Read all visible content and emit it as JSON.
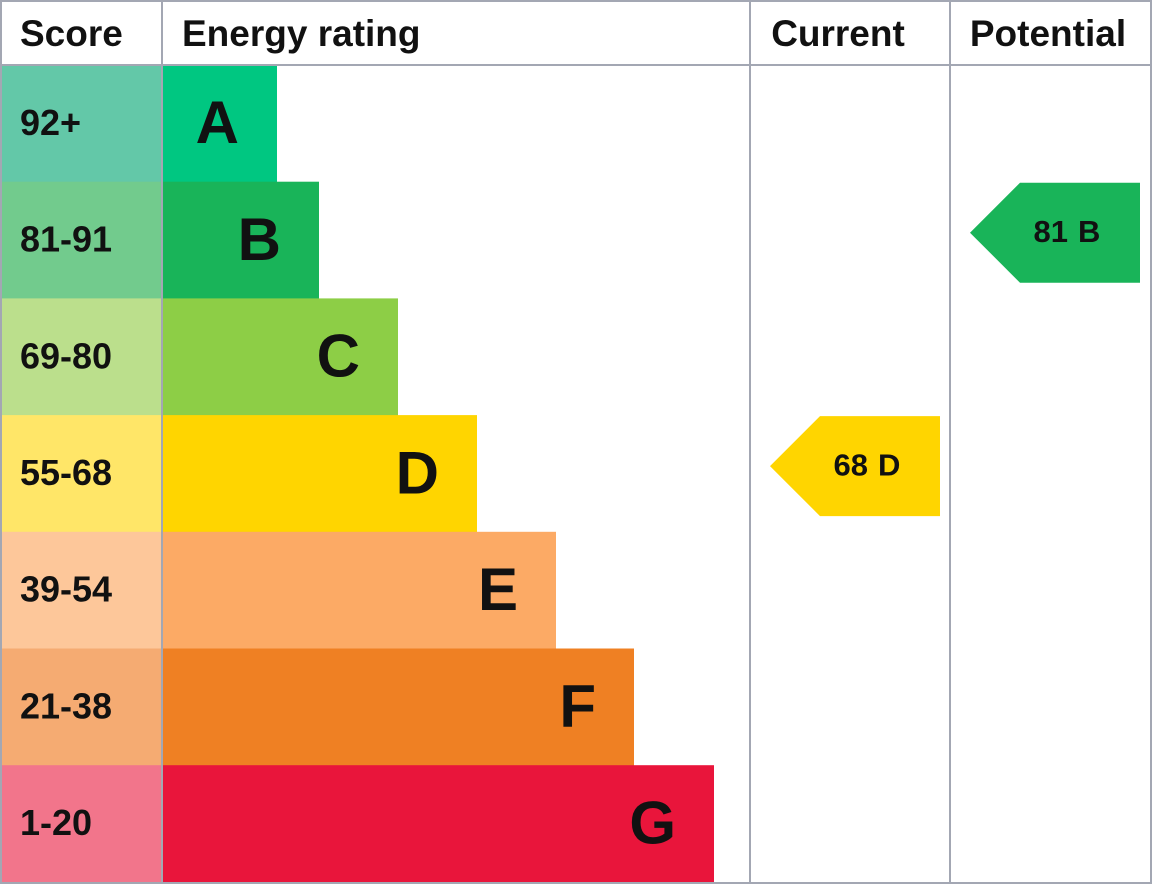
{
  "header": {
    "score": "Score",
    "energy_rating": "Energy rating",
    "current": "Current",
    "potential": "Potential"
  },
  "rows": [
    {
      "score": "92+",
      "rating": "A",
      "color": "#00c781",
      "score_color": "#63c8a8"
    },
    {
      "score": "81-91",
      "rating": "B",
      "color": "#19b459",
      "score_color": "#72cb8d"
    },
    {
      "score": "69-80",
      "rating": "C",
      "color": "#8dce46",
      "score_color": "#bbdf8c"
    },
    {
      "score": "55-68",
      "rating": "D",
      "color": "#ffd500",
      "score_color": "#ffe668"
    },
    {
      "score": "39-54",
      "rating": "E",
      "color": "#fcaa65",
      "score_color": "#fdc79a"
    },
    {
      "score": "21-38",
      "rating": "F",
      "color": "#ef8023",
      "score_color": "#f5ab72"
    },
    {
      "score": "1-20",
      "rating": "G",
      "color": "#e9153b",
      "score_color": "#f2758b"
    }
  ],
  "current": {
    "score": 68,
    "rating": "D"
  },
  "potential": {
    "score": 81,
    "rating": "B"
  }
}
